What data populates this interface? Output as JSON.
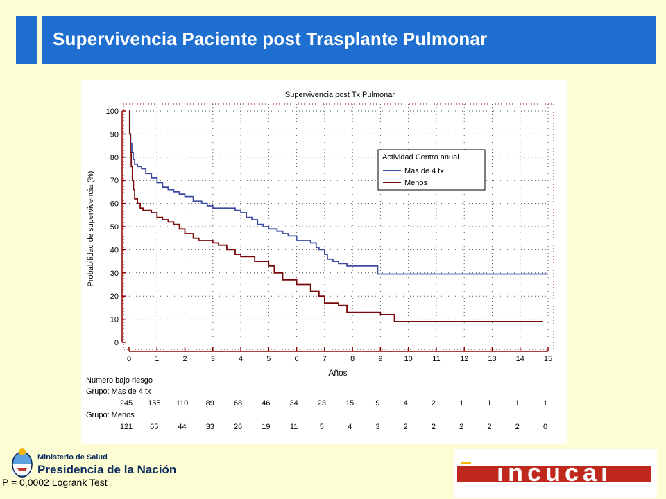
{
  "slide": {
    "title": "Supervivencia Paciente post Trasplante Pulmonar",
    "pvalue_text": "P = 0,0002 Logrank Test"
  },
  "footer": {
    "ministry_line1": "Ministerio de Salud",
    "ministry_line2": "Presidencia de la Nación",
    "logo_text": "incucai"
  },
  "colors": {
    "header": "#1f6fd0",
    "background": "#fdfdd4",
    "series_mas": "#3a4aa0",
    "series_menos": "#7a0a0a",
    "axis": "#8b0000"
  },
  "risk_table": {
    "header": "Número bajo riesgo",
    "groups": [
      {
        "label": "Grupo: Mas de 4 tx",
        "values": [
          "245",
          "155",
          "110",
          "89",
          "68",
          "46",
          "34",
          "23",
          "15",
          "9",
          "4",
          "2",
          "1",
          "1",
          "1",
          "1"
        ]
      },
      {
        "label": "Grupo: Menos",
        "values": [
          "121",
          "65",
          "44",
          "33",
          "26",
          "19",
          "11",
          "5",
          "4",
          "3",
          "2",
          "2",
          "2",
          "2",
          "2",
          "0"
        ]
      }
    ]
  },
  "chart_data": {
    "type": "line",
    "title": "Supervivencia post Tx Pulmonar",
    "xlabel": "Años",
    "ylabel": "Probabilidad de supervivencia (%)",
    "xlim": [
      0,
      15
    ],
    "ylim": [
      0,
      100
    ],
    "xticks": [
      "0",
      "1",
      "2",
      "3",
      "4",
      "5",
      "6",
      "7",
      "8",
      "9",
      "10",
      "11",
      "12",
      "13",
      "14",
      "15"
    ],
    "yticks": [
      "0",
      "10",
      "20",
      "30",
      "40",
      "50",
      "60",
      "70",
      "80",
      "90",
      "100"
    ],
    "grid": true,
    "step": true,
    "legend": {
      "title": "Actividad Centro anual",
      "placement": "top-right"
    },
    "series": [
      {
        "name": "Mas de 4 tx",
        "x": [
          0,
          0.03,
          0.06,
          0.1,
          0.15,
          0.2,
          0.3,
          0.45,
          0.6,
          0.8,
          1.0,
          1.2,
          1.4,
          1.6,
          1.8,
          2.0,
          2.3,
          2.6,
          2.8,
          3.0,
          3.5,
          3.8,
          4.0,
          4.2,
          4.4,
          4.6,
          4.8,
          5.0,
          5.3,
          5.5,
          5.7,
          6.0,
          6.5,
          6.7,
          6.8,
          7.0,
          7.1,
          7.3,
          7.5,
          7.8,
          8.0,
          8.9,
          15.0
        ],
        "y": [
          100,
          90,
          86,
          82,
          79,
          77,
          76,
          75,
          73,
          71,
          69,
          67,
          66,
          65,
          64,
          63,
          61,
          60,
          59,
          58,
          58,
          57,
          56,
          54,
          53,
          51,
          50,
          49,
          48,
          47,
          46,
          44,
          43,
          41,
          40,
          38,
          36,
          35,
          34,
          33,
          33,
          29.5,
          29.5
        ]
      },
      {
        "name": "Menos",
        "x": [
          0,
          0.02,
          0.05,
          0.08,
          0.12,
          0.16,
          0.2,
          0.3,
          0.4,
          0.5,
          0.8,
          1.0,
          1.2,
          1.4,
          1.6,
          1.8,
          2.0,
          2.3,
          2.5,
          3.0,
          3.2,
          3.5,
          3.8,
          4.0,
          4.5,
          5.0,
          5.2,
          5.5,
          6.0,
          6.5,
          6.8,
          7.0,
          7.5,
          7.8,
          8.5,
          9.0,
          9.5,
          14.8
        ],
        "y": [
          100,
          90,
          82,
          76,
          70,
          66,
          62,
          60,
          58,
          57,
          56,
          54,
          53,
          52,
          51,
          49,
          47,
          45,
          44,
          43,
          42,
          40,
          38,
          37,
          35,
          33,
          30,
          27,
          25,
          22,
          20,
          17,
          16,
          13,
          13,
          12,
          9,
          9
        ]
      }
    ]
  }
}
